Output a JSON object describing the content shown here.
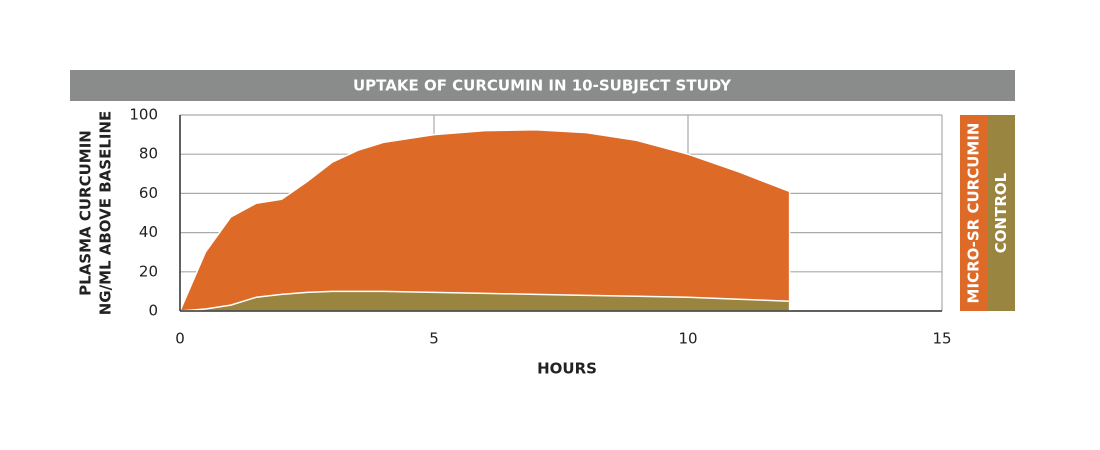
{
  "chart_data": {
    "type": "area",
    "title": "UPTAKE OF CURCUMIN IN 10-SUBJECT STUDY",
    "x_label": "HOURS",
    "y_label": [
      "PLASMA CURCUMIN",
      "NG/ML ABOVE BASELINE"
    ],
    "x": [
      0,
      0.5,
      1,
      1.5,
      2,
      2.5,
      3,
      3.5,
      4,
      5,
      6,
      7,
      8,
      9,
      10,
      11,
      12
    ],
    "series": [
      {
        "name": "MICRO-SR CURCUMIN",
        "color": "#dd6a27",
        "values": [
          0,
          30,
          48,
          55,
          57,
          66,
          76,
          82,
          86,
          90,
          92,
          92.5,
          91,
          87,
          80,
          71,
          61
        ]
      },
      {
        "name": "CONTROL",
        "color": "#9a8540",
        "values": [
          0,
          1,
          3,
          7,
          8.5,
          9.5,
          10,
          10,
          10,
          9.5,
          9,
          8.5,
          8,
          7.5,
          7,
          6,
          5
        ]
      }
    ],
    "xlim": [
      0,
      15
    ],
    "xticks": [
      0,
      5,
      10,
      15
    ],
    "ylim": [
      0,
      100
    ],
    "yticks": [
      0,
      20,
      40,
      60,
      80,
      100
    ],
    "grid": true
  }
}
